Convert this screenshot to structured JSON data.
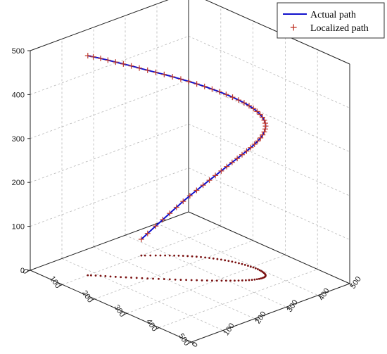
{
  "chart_data": {
    "type": "line3d",
    "title": "",
    "grid": true,
    "legend_position": "top-right",
    "axes": {
      "x": {
        "label": "",
        "range": [
          0,
          500
        ],
        "ticks": [
          0,
          100,
          200,
          300,
          400,
          500
        ]
      },
      "y": {
        "label": "",
        "range": [
          0,
          500
        ],
        "ticks": [
          0,
          100,
          200,
          300,
          400,
          500
        ]
      },
      "z": {
        "label": "",
        "range": [
          0,
          500
        ],
        "ticks": [
          0,
          100,
          200,
          300,
          400,
          500
        ]
      }
    },
    "series": [
      {
        "name": "Actual path",
        "kind": "line",
        "color": "#1010cc"
      },
      {
        "name": "Localized path",
        "kind": "marker",
        "marker": "+",
        "color": "#c0392b"
      }
    ],
    "path": {
      "x": [
        100,
        120,
        145,
        170,
        196,
        222,
        248,
        272,
        295,
        315,
        332,
        345,
        353,
        356,
        354,
        346,
        333,
        316,
        296,
        274,
        251,
        228,
        205,
        182,
        160,
        140,
        120,
        100
      ],
      "y": [
        80,
        100,
        122,
        146,
        171,
        197,
        223,
        249,
        274,
        298,
        320,
        340,
        357,
        371,
        382,
        390,
        395,
        397,
        395,
        390,
        382,
        371,
        357,
        340,
        320,
        298,
        274,
        249
      ],
      "z": [
        500,
        495,
        489,
        482,
        474,
        466,
        457,
        447,
        436,
        424,
        411,
        397,
        382,
        366,
        349,
        331,
        312,
        292,
        271,
        249,
        226,
        202,
        177,
        151,
        124,
        96,
        67,
        37
      ]
    },
    "projection_color": "#7a1010"
  },
  "legend": {
    "actual_label": "Actual path",
    "localized_label": "Localized path"
  },
  "colors": {
    "actual": "#1010cc",
    "localized": "#c0392b",
    "projection": "#7a1010",
    "grid": "#b8b8b8"
  }
}
